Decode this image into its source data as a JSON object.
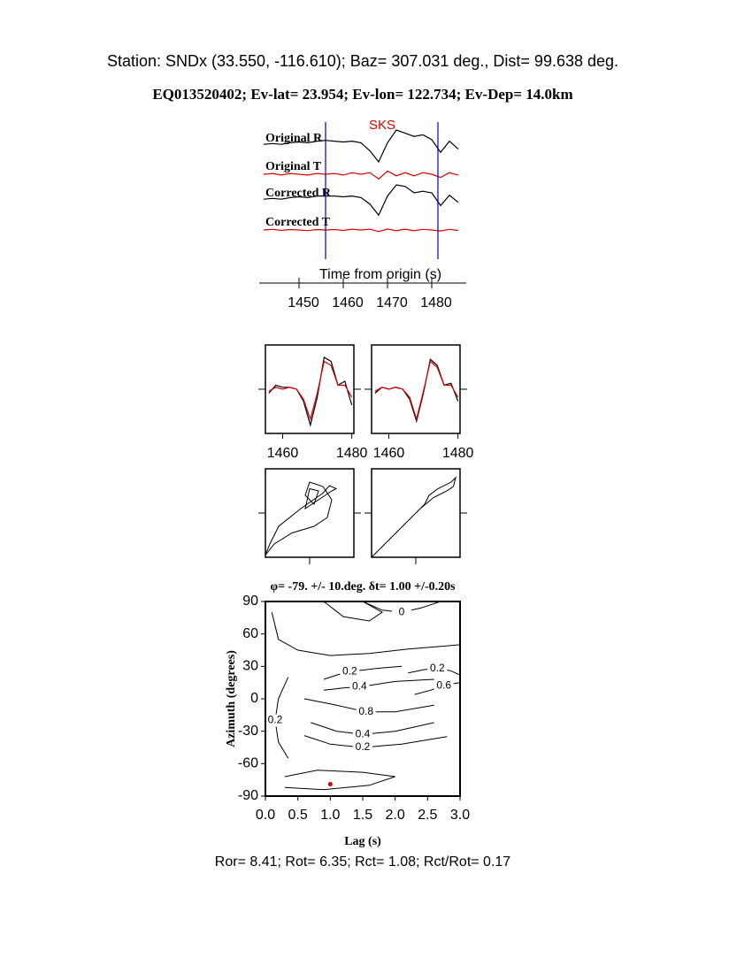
{
  "header": {
    "station": "Station: SNDx (33.550, -116.610); Baz=  307.031 deg., Dist=   99.638 deg.",
    "event": "EQ013520402; Ev-lat=  23.954; Ev-lon= 122.734; Ev-Dep= 14.0km"
  },
  "chart_data": [
    {
      "type": "line",
      "xlabel": "Time from origin (s)",
      "annotation": "SKS",
      "window": [
        1456,
        1481.4
      ],
      "window_color": "#0000cc",
      "xlim": [
        1441,
        1487.8
      ],
      "xticks": [
        1450,
        1460,
        1470,
        1480
      ],
      "x": [
        1442,
        1444,
        1446,
        1448,
        1450,
        1452,
        1454,
        1456,
        1458,
        1460,
        1462,
        1464,
        1466,
        1468,
        1470,
        1472,
        1474,
        1476,
        1478,
        1480,
        1482,
        1484,
        1486
      ],
      "series": [
        {
          "name": "Original R",
          "color": "#000000",
          "values": [
            0.1,
            0.15,
            0.1,
            0.2,
            0.25,
            0.2,
            0.3,
            0.35,
            0.3,
            0.25,
            0.3,
            0.2,
            -0.3,
            -1.0,
            0.2,
            1.0,
            0.8,
            0.6,
            0.7,
            0.4,
            -0.4,
            0.3,
            -0.2
          ]
        },
        {
          "name": "Original T",
          "color": "#dd0000",
          "values": [
            0,
            0.05,
            -0.05,
            0.05,
            0,
            -0.05,
            0.05,
            0,
            0.05,
            -0.05,
            0.1,
            0,
            0.1,
            -0.3,
            0.2,
            -0.1,
            0.1,
            -0.1,
            0.1,
            0,
            -0.2,
            0.1,
            -0.05
          ]
        },
        {
          "name": "Corrected R",
          "color": "#000000",
          "values": [
            0.1,
            0.15,
            0.1,
            0.2,
            0.25,
            0.2,
            0.3,
            0.3,
            0.3,
            0.25,
            0.3,
            0.2,
            -0.2,
            -0.9,
            0.3,
            1.0,
            0.9,
            0.5,
            0.6,
            0.5,
            -0.3,
            0.35,
            -0.1
          ]
        },
        {
          "name": "Corrected T",
          "color": "#dd0000",
          "values": [
            0,
            0.04,
            -0.03,
            0.03,
            0,
            -0.04,
            0.03,
            0,
            0.03,
            -0.03,
            0.05,
            0,
            0.05,
            -0.1,
            0.06,
            -0.05,
            0.05,
            -0.05,
            0.04,
            0,
            -0.06,
            0.04,
            -0.03
          ]
        }
      ]
    },
    {
      "type": "line",
      "xlim": [
        1455,
        1480.6
      ],
      "xticks": [
        1460,
        1480
      ],
      "x": [
        1456,
        1458,
        1460,
        1462,
        1464,
        1466,
        1468,
        1470,
        1472,
        1474,
        1476,
        1478,
        1480
      ],
      "series": [
        {
          "color": "#000000",
          "values": [
            -0.1,
            0.1,
            0.05,
            0.05,
            0.0,
            -0.3,
            -0.9,
            -0.2,
            0.8,
            0.7,
            0.1,
            0.2,
            -0.4
          ]
        },
        {
          "color": "#dd0000",
          "values": [
            -0.05,
            0.05,
            0.0,
            0.05,
            0.0,
            -0.25,
            -0.75,
            -0.1,
            0.7,
            0.6,
            0.1,
            0.1,
            -0.2
          ]
        }
      ]
    },
    {
      "type": "line",
      "xlim": [
        1455,
        1480.6
      ],
      "xticks": [
        1460,
        1480
      ],
      "x": [
        1456,
        1458,
        1460,
        1462,
        1464,
        1466,
        1468,
        1470,
        1472,
        1474,
        1476,
        1478,
        1480
      ],
      "series": [
        {
          "color": "#000000",
          "values": [
            -0.1,
            0.05,
            0.0,
            0.05,
            0.0,
            -0.25,
            -0.8,
            -0.1,
            0.75,
            0.6,
            0.1,
            0.15,
            -0.3
          ]
        },
        {
          "color": "#dd0000",
          "values": [
            -0.05,
            0.05,
            0.0,
            0.05,
            0.0,
            -0.2,
            -0.75,
            -0.05,
            0.7,
            0.55,
            0.1,
            0.1,
            -0.2
          ]
        }
      ]
    },
    {
      "type": "trajectory",
      "xlim": [
        -1,
        1
      ],
      "ylim": [
        -1,
        1
      ],
      "series": [
        {
          "color": "#000000",
          "x": [
            -1,
            -0.8,
            -0.4,
            0.1,
            0.4,
            0.5,
            0.3,
            0.0,
            -0.1,
            0.1,
            0.2,
            0.0,
            -0.1,
            0.5,
            0.6,
            0.45,
            0.3,
            -0.2,
            -0.7,
            -0.9,
            -1
          ],
          "y": [
            -0.95,
            -0.7,
            -0.45,
            -0.3,
            -0.1,
            0.3,
            0.6,
            0.7,
            0.4,
            0.2,
            0.5,
            0.55,
            0.1,
            0.5,
            0.55,
            0.62,
            0.45,
            0.1,
            -0.3,
            -0.7,
            -0.95
          ]
        }
      ]
    },
    {
      "type": "trajectory",
      "xlim": [
        -1,
        1
      ],
      "ylim": [
        -1,
        1
      ],
      "series": [
        {
          "color": "#000000",
          "x": [
            -1,
            -0.6,
            -0.3,
            0,
            0.2,
            0.3,
            0.5,
            0.8,
            0.9,
            0.85,
            0.7,
            0.4,
            0.1,
            -0.2,
            -0.6,
            -1
          ],
          "y": [
            -1,
            -0.6,
            -0.3,
            0,
            0.2,
            0.4,
            0.55,
            0.7,
            0.8,
            0.6,
            0.5,
            0.35,
            0.1,
            -0.2,
            -0.6,
            -1
          ]
        }
      ]
    },
    {
      "type": "contour",
      "title": "φ= -79. +/- 10.deg. δt= 1.00 +/-0.20s",
      "xlabel": "Lag (s)",
      "ylabel": "Azimuth (degrees)",
      "xlim": [
        0,
        3
      ],
      "ylim": [
        -90,
        90
      ],
      "xticks": [
        {
          "value": 0,
          "label": "0.0"
        },
        0.5,
        {
          "value": 1,
          "label": "1.0"
        },
        1.5,
        {
          "value": 2,
          "label": "2.0"
        },
        2.5,
        {
          "value": 3,
          "label": "3.0"
        }
      ],
      "yticks": [
        -90,
        -60,
        -30,
        0,
        30,
        60,
        90
      ],
      "contours": [
        {
          "level": 0,
          "labeled": true,
          "x": [
            1.5,
            1.8,
            2.1,
            2.4,
            2.7
          ],
          "y": [
            90,
            82,
            80,
            84,
            90
          ]
        },
        {
          "level": 0.2,
          "labeled": true,
          "x": [
            0.9,
            1.1,
            1.3,
            1.7,
            2.1
          ],
          "y": [
            18,
            22,
            25,
            28,
            30
          ]
        },
        {
          "level": 0.2,
          "labeled": true,
          "x": [
            2.2,
            2.45,
            2.65,
            2.85,
            3.0
          ],
          "y": [
            24,
            27,
            28,
            26,
            22
          ]
        },
        {
          "level": 0.4,
          "labeled": true,
          "x": [
            0.9,
            1.2,
            1.45,
            2.0,
            2.6
          ],
          "y": [
            8,
            10,
            11,
            16,
            18
          ]
        },
        {
          "level": 0.6,
          "labeled": true,
          "x": [
            2.3,
            2.55,
            2.75,
            2.9,
            3.0
          ],
          "y": [
            4,
            8,
            12,
            14,
            15
          ]
        },
        {
          "level": 0.8,
          "labeled": true,
          "x": [
            0.6,
            1.1,
            1.55,
            2.0,
            2.6
          ],
          "y": [
            0,
            -6,
            -12,
            -12,
            -6
          ]
        },
        {
          "level": 0.4,
          "labeled": true,
          "x": [
            0.7,
            1.1,
            1.5,
            2.0,
            2.6
          ],
          "y": [
            -22,
            -30,
            -33,
            -30,
            -22
          ]
        },
        {
          "level": 0.2,
          "labeled": true,
          "x": [
            0.6,
            1.0,
            1.5,
            2.1,
            2.8
          ],
          "y": [
            -34,
            -42,
            -45,
            -42,
            -35
          ]
        },
        {
          "level": 0.2,
          "labeled": true,
          "x": [
            0.35,
            0.2,
            0.15,
            0.2,
            0.35
          ],
          "y": [
            20,
            0,
            -20,
            -40,
            -55
          ]
        },
        {
          "level": 0.1,
          "labeled": false,
          "x": [
            0.3,
            0.8,
            1.5,
            2.0,
            1.6,
            0.9,
            0.3
          ],
          "y": [
            -72,
            -66,
            -68,
            -72,
            -80,
            -84,
            -82
          ]
        },
        {
          "level": 0.1,
          "labeled": false,
          "x": [
            0.9,
            1.2,
            1.6,
            1.8,
            1.5,
            1.1,
            0.9
          ],
          "y": [
            90,
            76,
            72,
            80,
            90,
            90,
            90
          ]
        },
        {
          "level": 0.1,
          "labeled": false,
          "x": [
            0.1,
            0.2,
            0.5,
            1.0,
            1.6,
            2.2,
            3.0
          ],
          "y": [
            80,
            55,
            45,
            40,
            42,
            46,
            50
          ]
        }
      ],
      "best": {
        "x": 1.0,
        "y": -79,
        "color": "#dd0000"
      }
    }
  ],
  "footer": "Ror= 8.41; Rot= 6.35; Rct= 1.08; Rct/Rot= 0.17"
}
